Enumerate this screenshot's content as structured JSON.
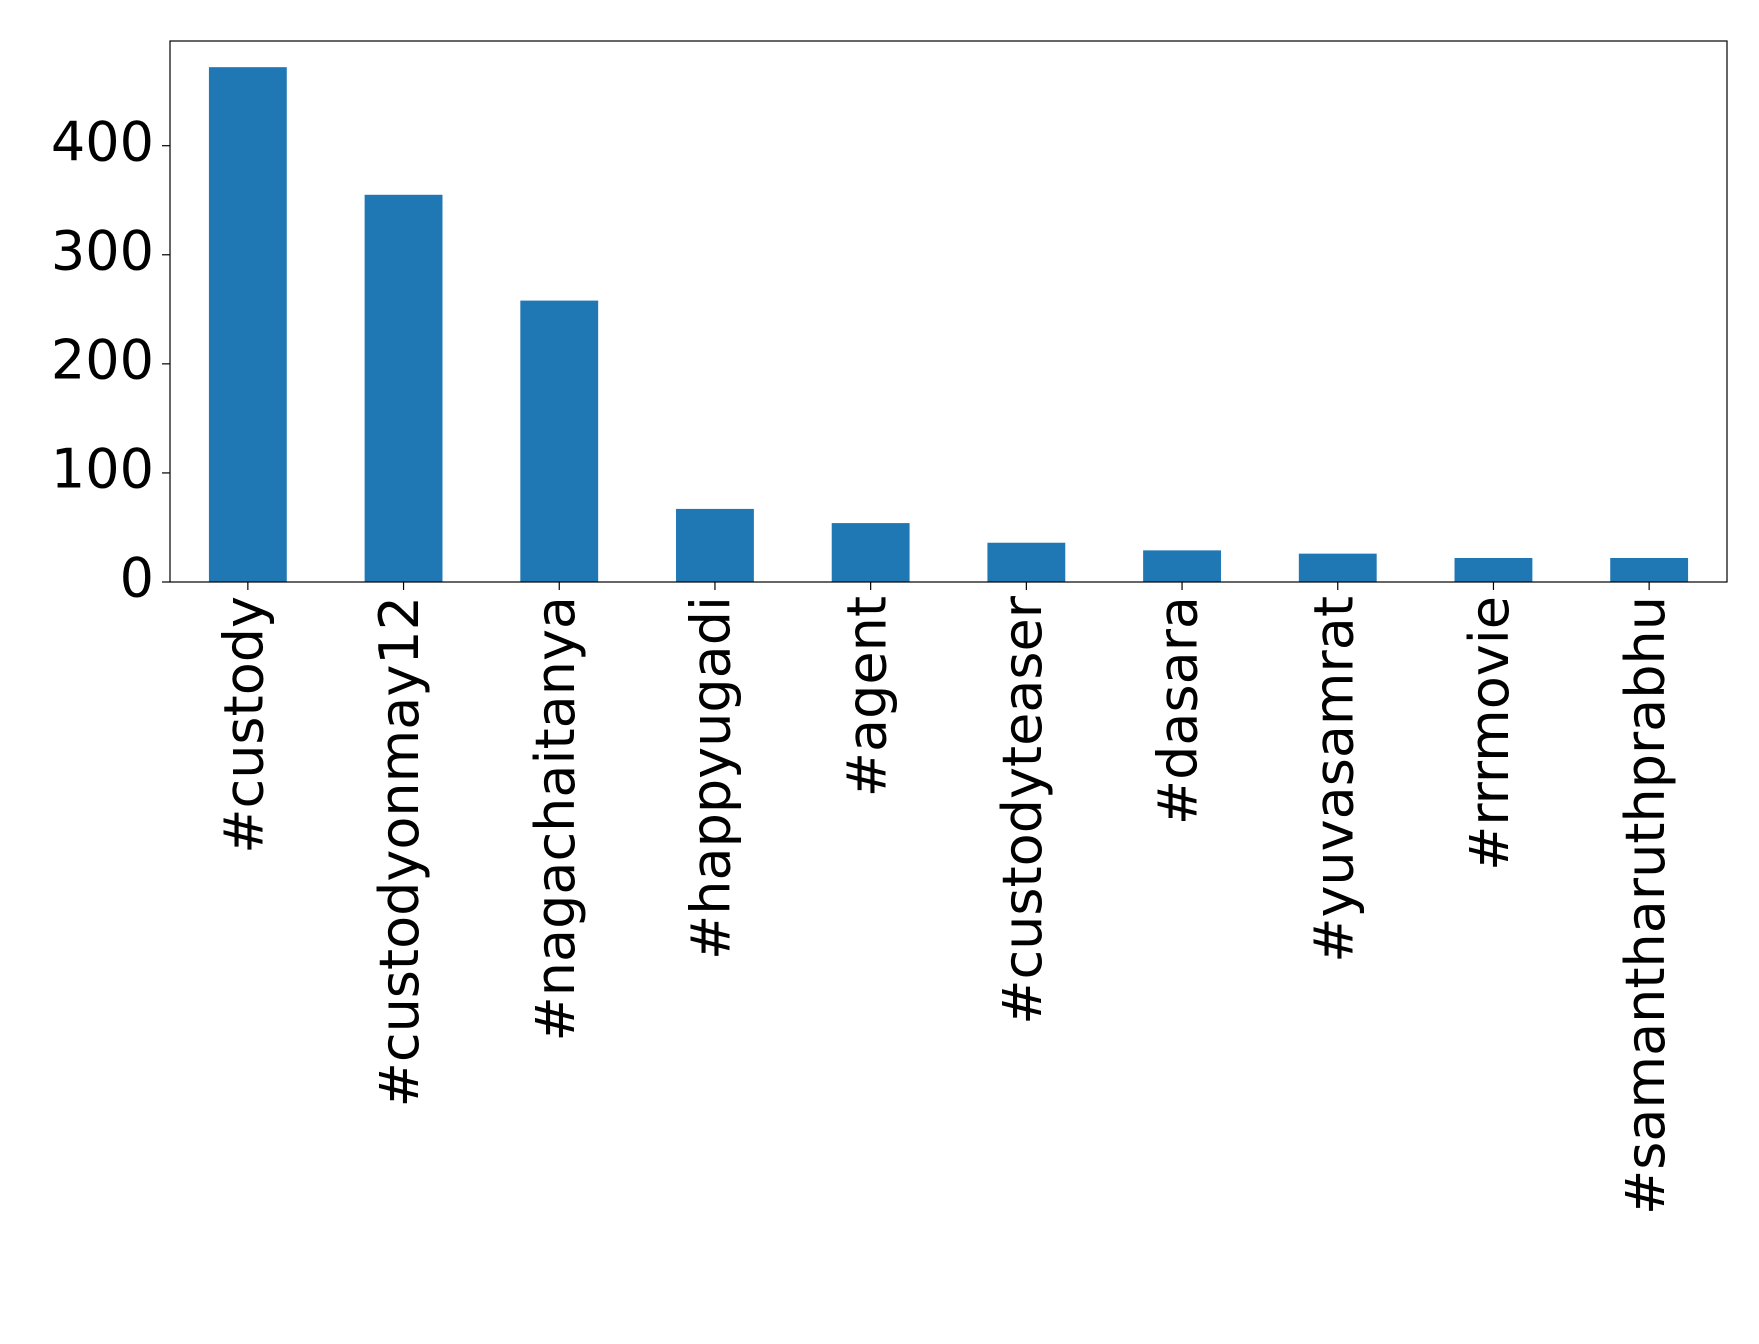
{
  "chart_data": {
    "type": "bar",
    "categories": [
      "#custody",
      "#custodyonmay12",
      "#nagachaitanya",
      "#happyugadi",
      "#agent",
      "#custodyteaser",
      "#dasara",
      "#yuvasamrat",
      "#rrrmovie",
      "#samantharuthprabhu"
    ],
    "values": [
      472,
      355,
      258,
      67,
      54,
      36,
      29,
      26,
      22,
      22
    ],
    "color": "#1f77b4",
    "ylim": [
      0,
      496
    ],
    "yticks": [
      0,
      100,
      200,
      300,
      400
    ],
    "grid": false
  }
}
